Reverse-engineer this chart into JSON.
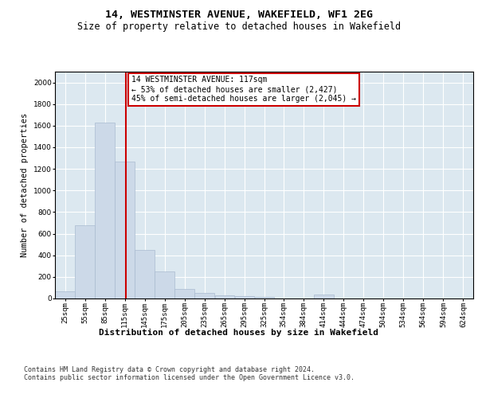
{
  "title1": "14, WESTMINSTER AVENUE, WAKEFIELD, WF1 2EG",
  "title2": "Size of property relative to detached houses in Wakefield",
  "xlabel": "Distribution of detached houses by size in Wakefield",
  "ylabel": "Number of detached properties",
  "annotation_line1": "14 WESTMINSTER AVENUE: 117sqm",
  "annotation_line2": "← 53% of detached houses are smaller (2,427)",
  "annotation_line3": "45% of semi-detached houses are larger (2,045) →",
  "property_size_sqm": 117,
  "bar_color": "#ccd9e8",
  "bar_edge_color": "#aabbd0",
  "vline_color": "#cc0000",
  "background_color": "#dce8f0",
  "footer_text": "Contains HM Land Registry data © Crown copyright and database right 2024.\nContains public sector information licensed under the Open Government Licence v3.0.",
  "categories": [
    "25sqm",
    "55sqm",
    "85sqm",
    "115sqm",
    "145sqm",
    "175sqm",
    "205sqm",
    "235sqm",
    "265sqm",
    "295sqm",
    "325sqm",
    "354sqm",
    "384sqm",
    "414sqm",
    "444sqm",
    "474sqm",
    "504sqm",
    "534sqm",
    "564sqm",
    "594sqm",
    "624sqm"
  ],
  "bin_left": [
    10,
    40,
    70,
    100,
    130,
    160,
    190,
    220,
    250,
    280,
    310,
    339,
    369,
    399,
    429,
    459,
    489,
    519,
    549,
    579,
    609
  ],
  "bin_width": 30,
  "values": [
    65,
    680,
    1630,
    1270,
    450,
    250,
    90,
    50,
    30,
    20,
    15,
    0,
    0,
    35,
    0,
    0,
    0,
    0,
    0,
    0,
    0
  ],
  "ylim": [
    0,
    2100
  ],
  "yticks": [
    0,
    200,
    400,
    600,
    800,
    1000,
    1200,
    1400,
    1600,
    1800,
    2000
  ],
  "xmin": 10,
  "xmax": 639,
  "title1_fontsize": 9.5,
  "title2_fontsize": 8.5,
  "xlabel_fontsize": 8,
  "ylabel_fontsize": 7.5,
  "annotation_fontsize": 7,
  "tick_fontsize": 6.5
}
